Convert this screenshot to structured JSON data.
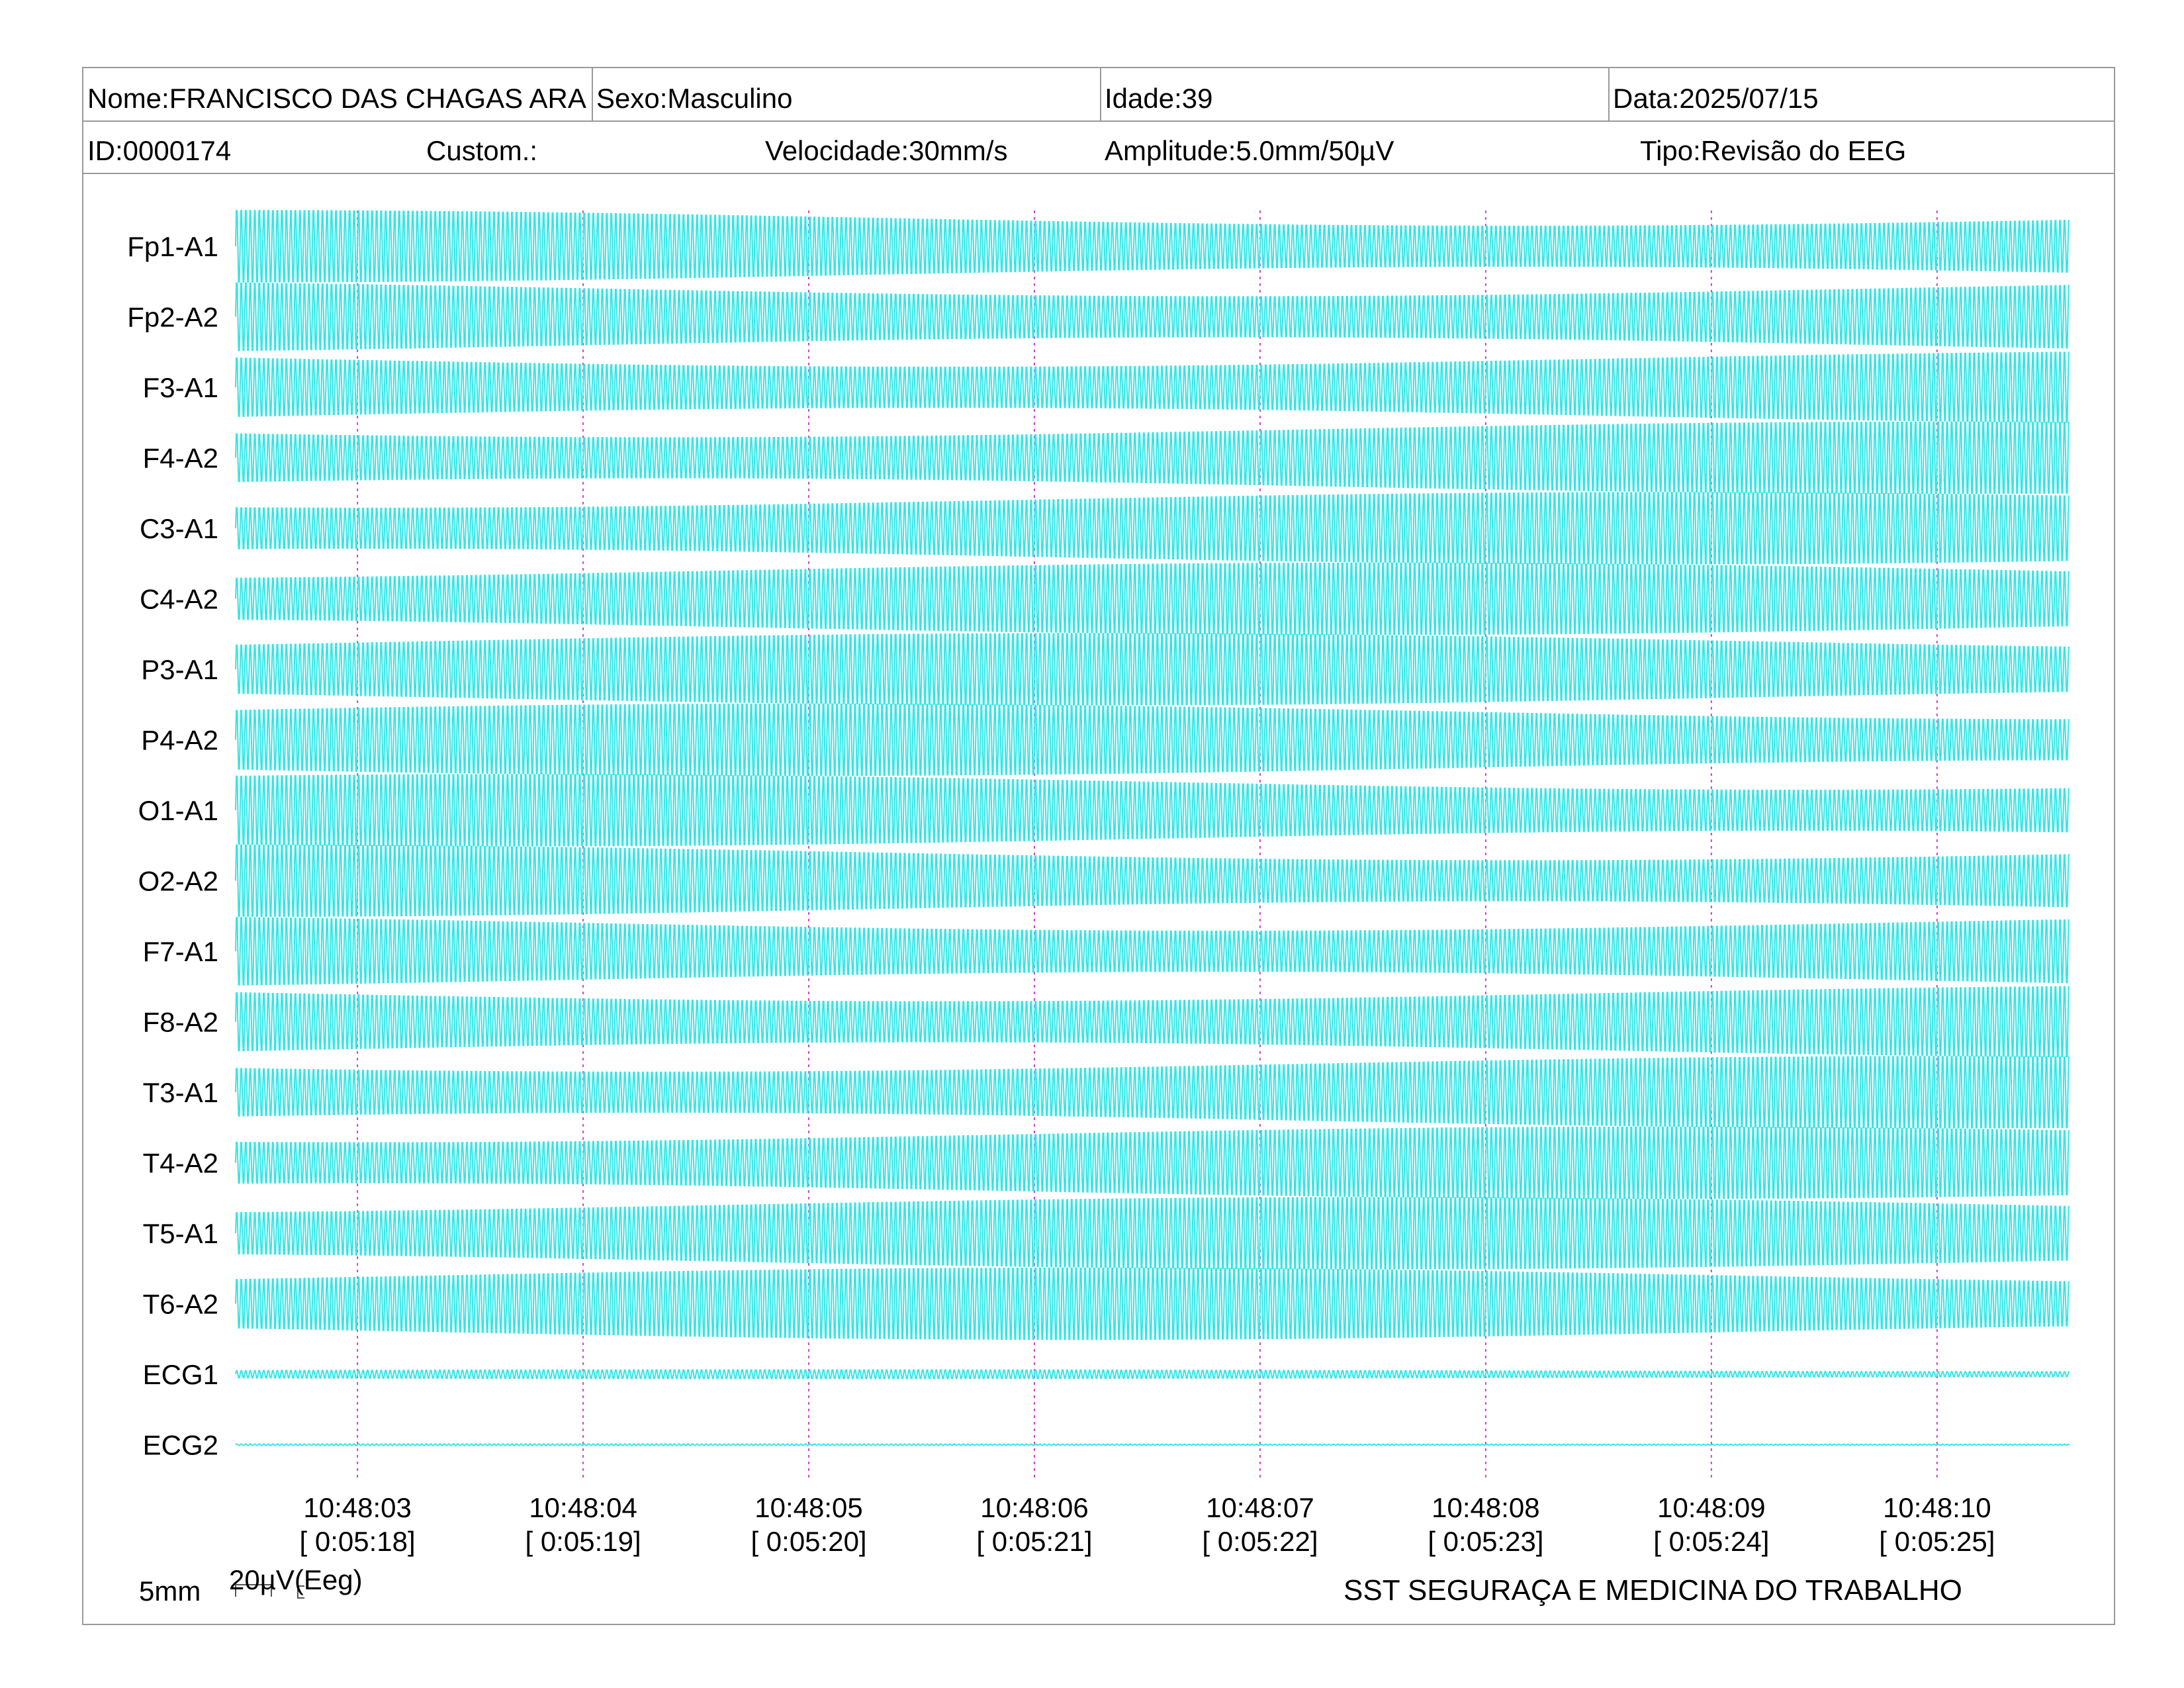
{
  "header": {
    "nome": "Nome:FRANCISCO DAS CHAGAS ARA",
    "sexo": "Sexo:Masculino",
    "idade": "Idade:39",
    "data": "Data:2025/07/15",
    "id": "ID:0000174",
    "custom": "Custom.:",
    "velocidade": "Velocidade:30mm/s",
    "amplitude": "Amplitude:5.0mm/50µV",
    "tipo": "Tipo:Revisão do EEG"
  },
  "scale": {
    "time_label": "5mm",
    "amp_label": "20µV(Eeg)"
  },
  "footer": "SST SEGURAÇA E MEDICINA DO TRABALHO",
  "colors": {
    "trace": "#33e6e6",
    "second_marker": "#cc44cc",
    "border": "#9a9a9a"
  },
  "chart_data": {
    "type": "line",
    "title": "",
    "xlabel": "",
    "ylabel": "",
    "channels": [
      "Fp1-A1",
      "Fp2-A2",
      "F3-A1",
      "F4-A2",
      "C3-A1",
      "C4-A2",
      "P3-A1",
      "P4-A2",
      "O1-A1",
      "O2-A2",
      "F7-A1",
      "F8-A2",
      "T3-A1",
      "T4-A2",
      "T5-A1",
      "T6-A2",
      "ECG1",
      "ECG2"
    ],
    "time_ticks": [
      {
        "clock": "10:48:03",
        "elapsed": "[ 0:05:18]"
      },
      {
        "clock": "10:48:04",
        "elapsed": "[ 0:05:19]"
      },
      {
        "clock": "10:48:05",
        "elapsed": "[ 0:05:20]"
      },
      {
        "clock": "10:48:06",
        "elapsed": "[ 0:05:21]"
      },
      {
        "clock": "10:48:07",
        "elapsed": "[ 0:05:22]"
      },
      {
        "clock": "10:48:08",
        "elapsed": "[ 0:05:23]"
      },
      {
        "clock": "10:48:09",
        "elapsed": "[ 0:05:24]"
      },
      {
        "clock": "10:48:10",
        "elapsed": "[ 0:05:25]"
      }
    ],
    "duration_seconds": 8.13,
    "start_offset_seconds": 0.54,
    "signal_frequency_hz": 50,
    "eeg_amplitude_relative": 1.0,
    "ecg1_amplitude_relative": 0.12,
    "ecg2_amplitude_relative": 0.02,
    "grid": false
  }
}
